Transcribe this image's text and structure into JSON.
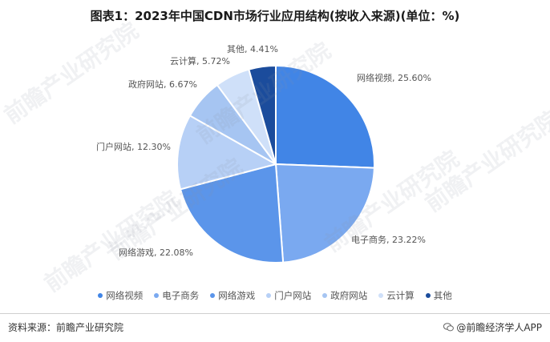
{
  "title": "图表1：2023年中国CDN市场行业应用结构(按收入来源)(单位：%)",
  "chart_data": {
    "type": "pie",
    "title": "图表1：2023年中国CDN市场行业应用结构(按收入来源)(单位：%)",
    "slices": [
      {
        "name": "网络视频",
        "value": 25.6,
        "label": "网络视频, 25.60%",
        "color": "#4185e6"
      },
      {
        "name": "电子商务",
        "value": 23.22,
        "label": "电子商务, 23.22%",
        "color": "#7aa9f0"
      },
      {
        "name": "网络游戏",
        "value": 22.08,
        "label": "网络游戏, 22.08%",
        "color": "#5b95ea"
      },
      {
        "name": "门户网站",
        "value": 12.3,
        "label": "门户网站, 12.30%",
        "color": "#b7d0f6"
      },
      {
        "name": "政府网站",
        "value": 6.67,
        "label": "政府网站, 6.67%",
        "color": "#a6c5f2"
      },
      {
        "name": "云计算",
        "value": 5.72,
        "label": "云计算, 5.72%",
        "color": "#cfe0f9"
      },
      {
        "name": "其他",
        "value": 4.41,
        "label": "其他, 4.41%",
        "color": "#1b4c9c"
      }
    ],
    "start_angle_deg": 0,
    "direction": "clockwise",
    "legend_position": "bottom"
  },
  "footer": {
    "source": "资料来源：前瞻产业研究院",
    "brand": "@前瞻经济学人APP"
  },
  "watermark": "前瞻产业研究院"
}
